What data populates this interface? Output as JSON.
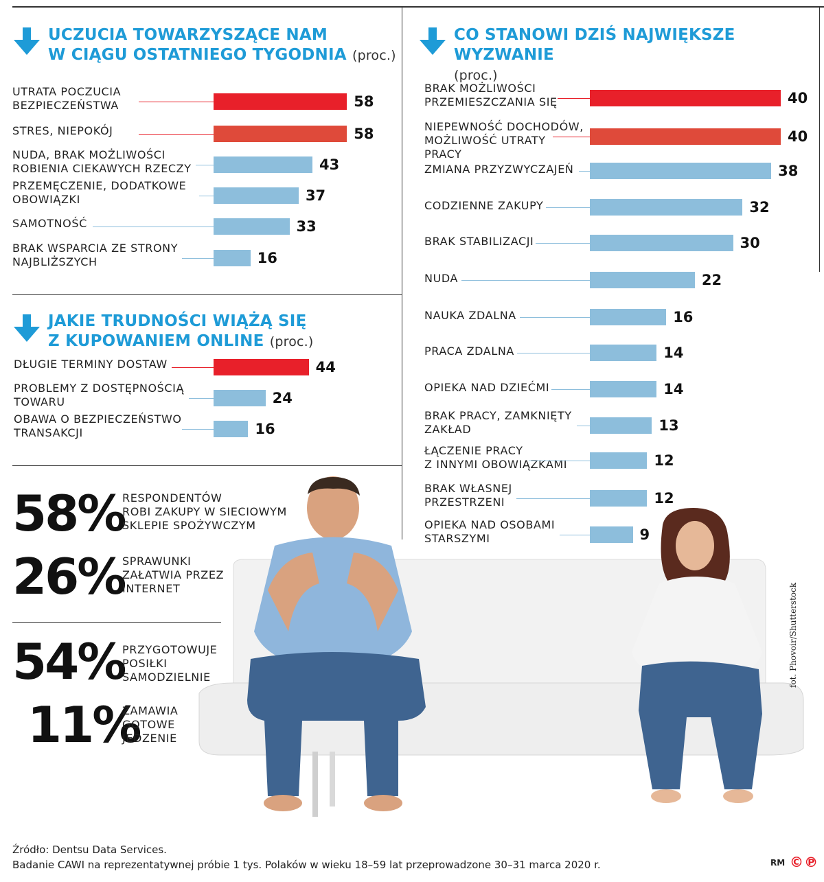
{
  "colors": {
    "accent": "#1e9bd7",
    "red": "#e8202a",
    "orange": "#df4a3a",
    "blue": "#8dbedc",
    "line_red": "#e8202a",
    "line_blue": "#8dbedc"
  },
  "icons": {
    "section_arrow": "arrow-down-icon",
    "copyright": "copyright-icons"
  },
  "chart_data": [
    {
      "type": "bar",
      "id": "feelings",
      "title_line1": "UCZUCIA TOWARZYSZĄCE NAM",
      "title_line2": "W CIĄGU OSTATNIEGO TYGODNIA",
      "unit": "(proc.)",
      "categories": [
        "UTRATA POCZUCIA\nBEZPIECZEŃSTWA",
        "STRES, NIEPOKÓJ",
        "NUDA, BRAK MOŻLIWOŚCI\nROBIENIA CIEKAWYCH RZECZY",
        "PRZEMĘCZENIE, DODATKOWE\nOBOWIĄZKI",
        "SAMOTNOŚĆ",
        "BRAK WSPARCIA ZE STRONY\nNAJBLIŻSZYCH"
      ],
      "values": [
        58,
        58,
        43,
        37,
        33,
        16
      ],
      "bar_colors": [
        "red",
        "orange",
        "blue",
        "blue",
        "blue",
        "blue"
      ]
    },
    {
      "type": "bar",
      "id": "online",
      "title_line1": "JAKIE TRUDNOŚCI WIĄŻĄ SIĘ",
      "title_line2": "Z KUPOWANIEM ONLINE",
      "unit": "(proc.)",
      "categories": [
        "DŁUGIE TERMINY DOSTAW",
        "PROBLEMY Z DOSTĘPNOŚCIĄ\nTOWARU",
        "OBAWA O BEZPIECZEŃSTWO\nTRANSAKCJI"
      ],
      "values": [
        44,
        24,
        16
      ],
      "bar_colors": [
        "red",
        "blue",
        "blue"
      ]
    },
    {
      "type": "bar",
      "id": "challenge",
      "title_line1": "CO STANOWI DZIŚ NAJWIĘKSZE WYZWANIE",
      "title_line2": "",
      "unit": "(proc.)",
      "categories": [
        "BRAK MOŻLIWOŚCI\nPRZEMIESZCZANIA SIĘ",
        "NIEPEWNOŚĆ DOCHODÓW,\nMOŻLIWOŚĆ UTRATY\nPRACY",
        "ZMIANA PRZYZWYCZAJEŃ",
        "CODZIENNE ZAKUPY",
        "BRAK STABILIZACJI",
        "NUDA",
        "NAUKA ZDALNA",
        "PRACA ZDALNA",
        "OPIEKA NAD DZIEĆMI",
        "BRAK PRACY, ZAMKNIĘTY\nZAKŁAD",
        "ŁĄCZENIE PRACY\nZ INNYMI OBOWIĄZKAMI",
        "BRAK WŁASNEJ\nPRZESTRZENI",
        "OPIEKA NAD OSOBAMI\nSTARSZYMI"
      ],
      "values": [
        40,
        40,
        38,
        32,
        30,
        22,
        16,
        14,
        14,
        13,
        12,
        12,
        9
      ],
      "bar_colors": [
        "red",
        "orange",
        "blue",
        "blue",
        "blue",
        "blue",
        "blue",
        "blue",
        "blue",
        "blue",
        "blue",
        "blue",
        "blue"
      ]
    }
  ],
  "stats": [
    {
      "value": "58%",
      "text": "RESPONDENTÓW\nROBI ZAKUPY W SIECIOWYM\nSKLEPIE SPOŻYWCZYM"
    },
    {
      "value": "26%",
      "text": "SPRAWUNKI\nZAŁATWIA PRZEZ\nINTERNET"
    },
    {
      "value": "54%",
      "text": "PRZYGOTOWUJE\nPOSIŁKI\nSAMODZIELNIE"
    },
    {
      "value": "11%",
      "text": "ZAMAWIA\nGOTOWE\nJEDZENIE"
    }
  ],
  "photo_credit": "fot. Phovoir/Shutterstock",
  "source": {
    "line1": "Źródło: Dentsu Data Services.",
    "line2": "Badanie CAWI na reprezentatywnej próbie 1 tys. Polaków w wieku 18–59 lat przeprowadzone 30–31 marca 2020 r."
  },
  "footer": {
    "rm": "RM",
    "copyright_symbols": "©℗"
  }
}
